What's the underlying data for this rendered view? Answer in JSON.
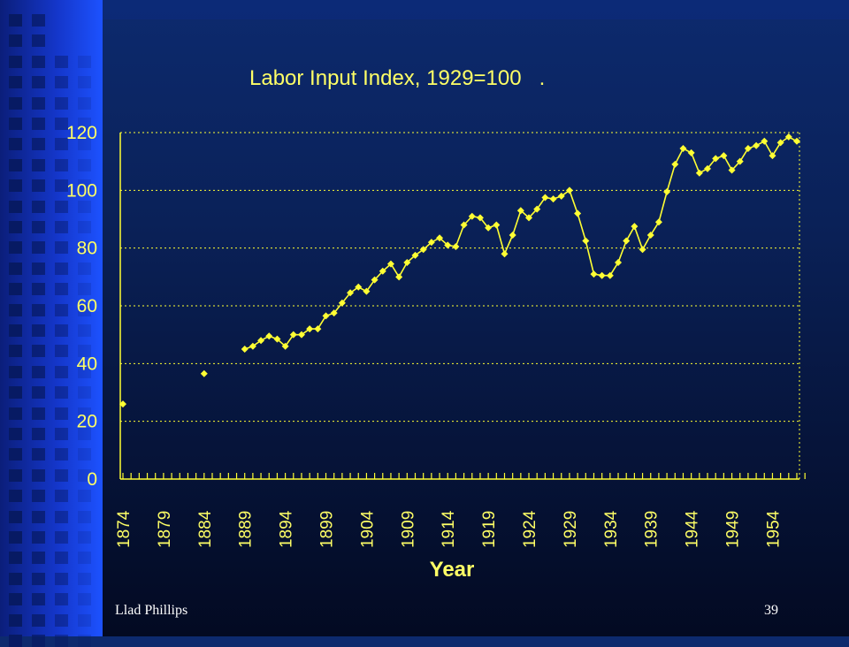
{
  "colors": {
    "accent": "#ffff33",
    "text": "#ffff66",
    "grid": "#ffff33",
    "background": "#0a2158",
    "sidebar": "#1d52ff"
  },
  "footer": {
    "author": "Llad Phillips",
    "page_number": "39"
  },
  "chart_data": {
    "type": "line",
    "title": "Labor Input Index, 1929=100   .",
    "xlabel": "Year",
    "ylabel": "",
    "ylim": [
      0,
      120
    ],
    "y_ticks": [
      "0",
      "20",
      "40",
      "60",
      "80",
      "100",
      "120"
    ],
    "x_tick_labels": [
      "1874",
      "1879",
      "1884",
      "1889",
      "1894",
      "1899",
      "1904",
      "1909",
      "1914",
      "1919",
      "1924",
      "1929",
      "1934",
      "1939",
      "1944",
      "1949",
      "1954"
    ],
    "xlim": [
      1874,
      1957
    ],
    "grid": "horizontal dotted",
    "marker": "diamond",
    "series": [
      {
        "x": [
          1874,
          1884,
          1889,
          1890,
          1891,
          1892,
          1893,
          1894,
          1895,
          1896,
          1897,
          1898,
          1899,
          1900,
          1901,
          1902,
          1903,
          1904,
          1905,
          1906,
          1907,
          1908,
          1909,
          1910,
          1911,
          1912,
          1913,
          1914,
          1915,
          1916,
          1917,
          1918,
          1919,
          1920,
          1921,
          1922,
          1923,
          1924,
          1925,
          1926,
          1927,
          1928,
          1929,
          1930,
          1931,
          1932,
          1933,
          1934,
          1935,
          1936,
          1937,
          1938,
          1939,
          1940,
          1941,
          1942,
          1943,
          1944,
          1945,
          1946,
          1947,
          1948,
          1949,
          1950,
          1951,
          1952,
          1953,
          1954,
          1955,
          1956,
          1957
        ],
        "values": [
          26,
          36.5,
          45,
          46,
          48,
          49.5,
          48.5,
          46,
          50,
          50,
          52,
          52,
          56.5,
          57.5,
          61,
          64.5,
          66.5,
          65,
          69,
          72,
          74.5,
          70,
          75,
          77.5,
          79.5,
          82,
          83.5,
          81,
          80.5,
          88,
          91,
          90.5,
          87,
          88,
          78,
          84.5,
          93,
          90.5,
          93.5,
          97.5,
          97,
          98,
          100,
          92,
          82.5,
          71,
          70.5,
          70.5,
          75,
          82.5,
          87.5,
          79.5,
          84.5,
          89,
          99.5,
          109,
          114.5,
          113,
          106,
          107.5,
          111,
          112,
          107,
          110,
          114.5,
          115.5,
          117,
          112,
          116.5,
          118.5,
          117
        ]
      }
    ]
  }
}
